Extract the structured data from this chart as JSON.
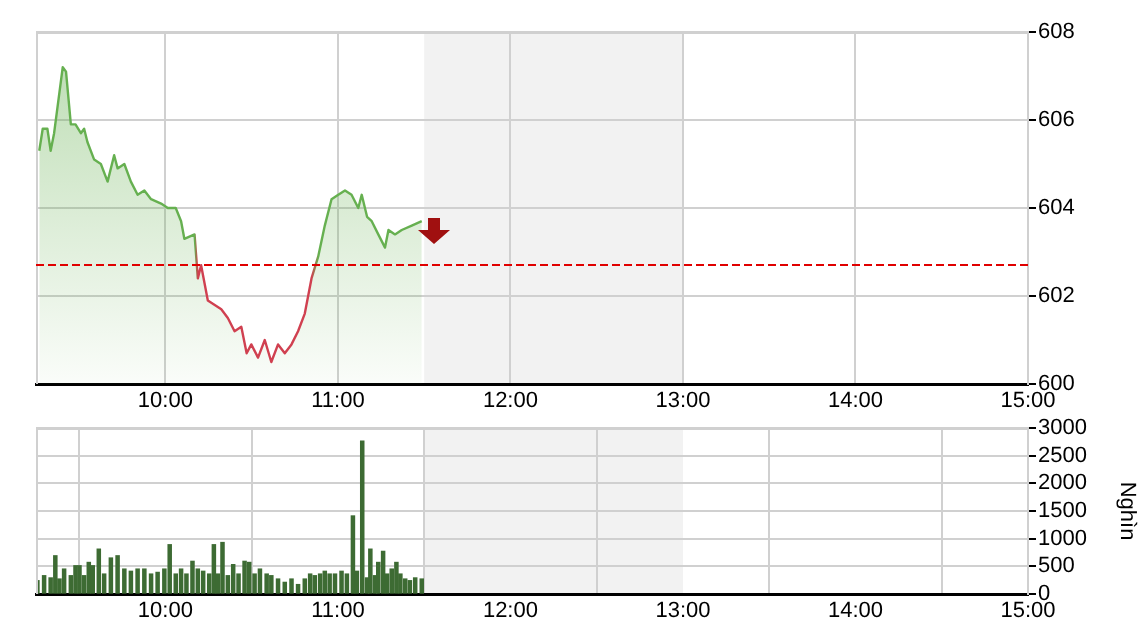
{
  "chart_data": [
    {
      "type": "area",
      "xlim": [
        9.25,
        15
      ],
      "xticks": [
        {
          "value": 10,
          "label": "10:00"
        },
        {
          "value": 11,
          "label": "11:00"
        },
        {
          "value": 12,
          "label": "12:00"
        },
        {
          "value": 13,
          "label": "13:00"
        },
        {
          "value": 14,
          "label": "14:00"
        },
        {
          "value": 15,
          "label": "15:00"
        }
      ],
      "ylim": [
        600,
        608
      ],
      "yticks": [
        600,
        602,
        604,
        606,
        608
      ],
      "grid": true,
      "legend": false,
      "marker": "none",
      "ref_lines": [
        {
          "axis": "y",
          "value": 602.75,
          "color": "#e00000",
          "line_style": "dashed"
        }
      ],
      "bands": [
        {
          "axis": "x",
          "from": 11.5,
          "to": 13,
          "color": "#f2f2f2"
        }
      ],
      "series": [
        {
          "color": "#66b050",
          "x": [
            9.269,
            9.289,
            9.316,
            9.335,
            9.355,
            9.405,
            9.424,
            9.452,
            9.479,
            9.51,
            9.529,
            9.548,
            9.587,
            9.626,
            9.665,
            9.703,
            9.723,
            9.762,
            9.8,
            9.839,
            9.878,
            9.917,
            9.975,
            10.014,
            10.06,
            10.091,
            10.11,
            10.169,
            10.188,
            10.207,
            10.246,
            10.324,
            10.362,
            10.401,
            10.44,
            10.471,
            10.498,
            10.537,
            10.576,
            10.614,
            10.653,
            10.692,
            10.731,
            10.769,
            10.808,
            10.847,
            10.886,
            10.924,
            10.963,
            11.002,
            11.041,
            11.079,
            11.118,
            11.138,
            11.169,
            11.196,
            11.234,
            11.273,
            11.293,
            11.331,
            11.37,
            11.428,
            11.486
          ],
          "values": [
            605.3,
            605.8,
            605.8,
            605.3,
            605.7,
            607.2,
            607.1,
            605.9,
            605.9,
            605.7,
            605.8,
            605.5,
            605.1,
            605.0,
            604.6,
            605.2,
            604.9,
            605.0,
            604.6,
            604.3,
            604.4,
            604.2,
            604.1,
            604.0,
            604.0,
            603.7,
            603.3,
            603.4,
            602.4,
            602.7,
            601.9,
            601.7,
            601.5,
            601.2,
            601.3,
            600.7,
            600.9,
            600.6,
            601.0,
            600.5,
            600.9,
            600.7,
            600.9,
            601.2,
            601.6,
            602.4,
            602.9,
            603.6,
            604.2,
            604.3,
            604.4,
            604.3,
            604.0,
            604.3,
            603.8,
            603.7,
            603.4,
            603.1,
            603.5,
            603.4,
            603.5,
            603.6,
            603.7
          ],
          "colors": [
            "#66b050",
            "#66b050",
            "#66b050",
            "#66b050",
            "#66b050",
            "#66b050",
            "#66b050",
            "#66b050",
            "#66b050",
            "#66b050",
            "#66b050",
            "#66b050",
            "#66b050",
            "#66b050",
            "#66b050",
            "#66b050",
            "#66b050",
            "#66b050",
            "#66b050",
            "#66b050",
            "#66b050",
            "#66b050",
            "#66b050",
            "#66b050",
            "#66b050",
            "#66b050",
            "#66b050",
            "#66b050",
            "#d04050",
            "#d04050",
            "#d04050",
            "#d04050",
            "#d04050",
            "#d04050",
            "#d04050",
            "#d04050",
            "#d04050",
            "#d04050",
            "#d04050",
            "#d04050",
            "#d04050",
            "#d04050",
            "#d04050",
            "#d04050",
            "#d04050",
            "#d04050",
            "#66b050",
            "#66b050",
            "#66b050",
            "#66b050",
            "#66b050",
            "#66b050",
            "#66b050",
            "#66b050",
            "#66b050",
            "#66b050",
            "#66b050",
            "#66b050",
            "#66b050",
            "#66b050",
            "#66b050",
            "#66b050",
            "#66b050"
          ]
        }
      ]
    },
    {
      "type": "bar",
      "xlim": [
        9.25,
        15
      ],
      "xticks": [
        {
          "value": 10,
          "label": "10:00"
        },
        {
          "value": 11,
          "label": "11:00"
        },
        {
          "value": 12,
          "label": "12:00"
        },
        {
          "value": 13,
          "label": "13:00"
        },
        {
          "value": 14,
          "label": "14:00"
        },
        {
          "value": 15,
          "label": "15:00"
        }
      ],
      "ylim": [
        0,
        3000
      ],
      "yticks": [
        0,
        500,
        1000,
        1500,
        2000,
        2500,
        3000
      ],
      "ylabel": "Nghìn",
      "grid": true,
      "legend": false,
      "bands": [
        {
          "axis": "x",
          "from": 11.5,
          "to": 13,
          "color": "#f2f2f2"
        }
      ],
      "series": [
        {
          "color": "#3d6b33",
          "x": [
            9.258,
            9.297,
            9.335,
            9.362,
            9.386,
            9.413,
            9.452,
            9.479,
            9.502,
            9.529,
            9.556,
            9.579,
            9.614,
            9.645,
            9.684,
            9.723,
            9.762,
            9.8,
            9.839,
            9.878,
            9.917,
            9.955,
            9.994,
            10.025,
            10.06,
            10.091,
            10.122,
            10.157,
            10.188,
            10.219,
            10.254,
            10.281,
            10.304,
            10.331,
            10.362,
            10.393,
            10.424,
            10.459,
            10.486,
            10.517,
            10.548,
            10.587,
            10.614,
            10.653,
            10.692,
            10.731,
            10.769,
            10.808,
            10.839,
            10.866,
            10.897,
            10.924,
            10.952,
            10.983,
            11.021,
            11.052,
            11.087,
            11.11,
            11.141,
            11.169,
            11.188,
            11.215,
            11.234,
            11.262,
            11.285,
            11.312,
            11.339,
            11.362,
            11.39,
            11.417,
            11.448,
            11.486
          ],
          "values": [
            240,
            330,
            290,
            690,
            270,
            450,
            330,
            510,
            510,
            330,
            570,
            510,
            810,
            360,
            650,
            690,
            450,
            410,
            450,
            450,
            360,
            390,
            450,
            890,
            360,
            450,
            360,
            590,
            450,
            410,
            360,
            890,
            360,
            930,
            330,
            530,
            360,
            590,
            570,
            360,
            450,
            360,
            330,
            270,
            210,
            270,
            170,
            270,
            360,
            330,
            360,
            410,
            360,
            360,
            410,
            360,
            1410,
            410,
            2760,
            290,
            810,
            330,
            570,
            770,
            360,
            450,
            570,
            360,
            270,
            240,
            290,
            270
          ]
        }
      ]
    }
  ]
}
